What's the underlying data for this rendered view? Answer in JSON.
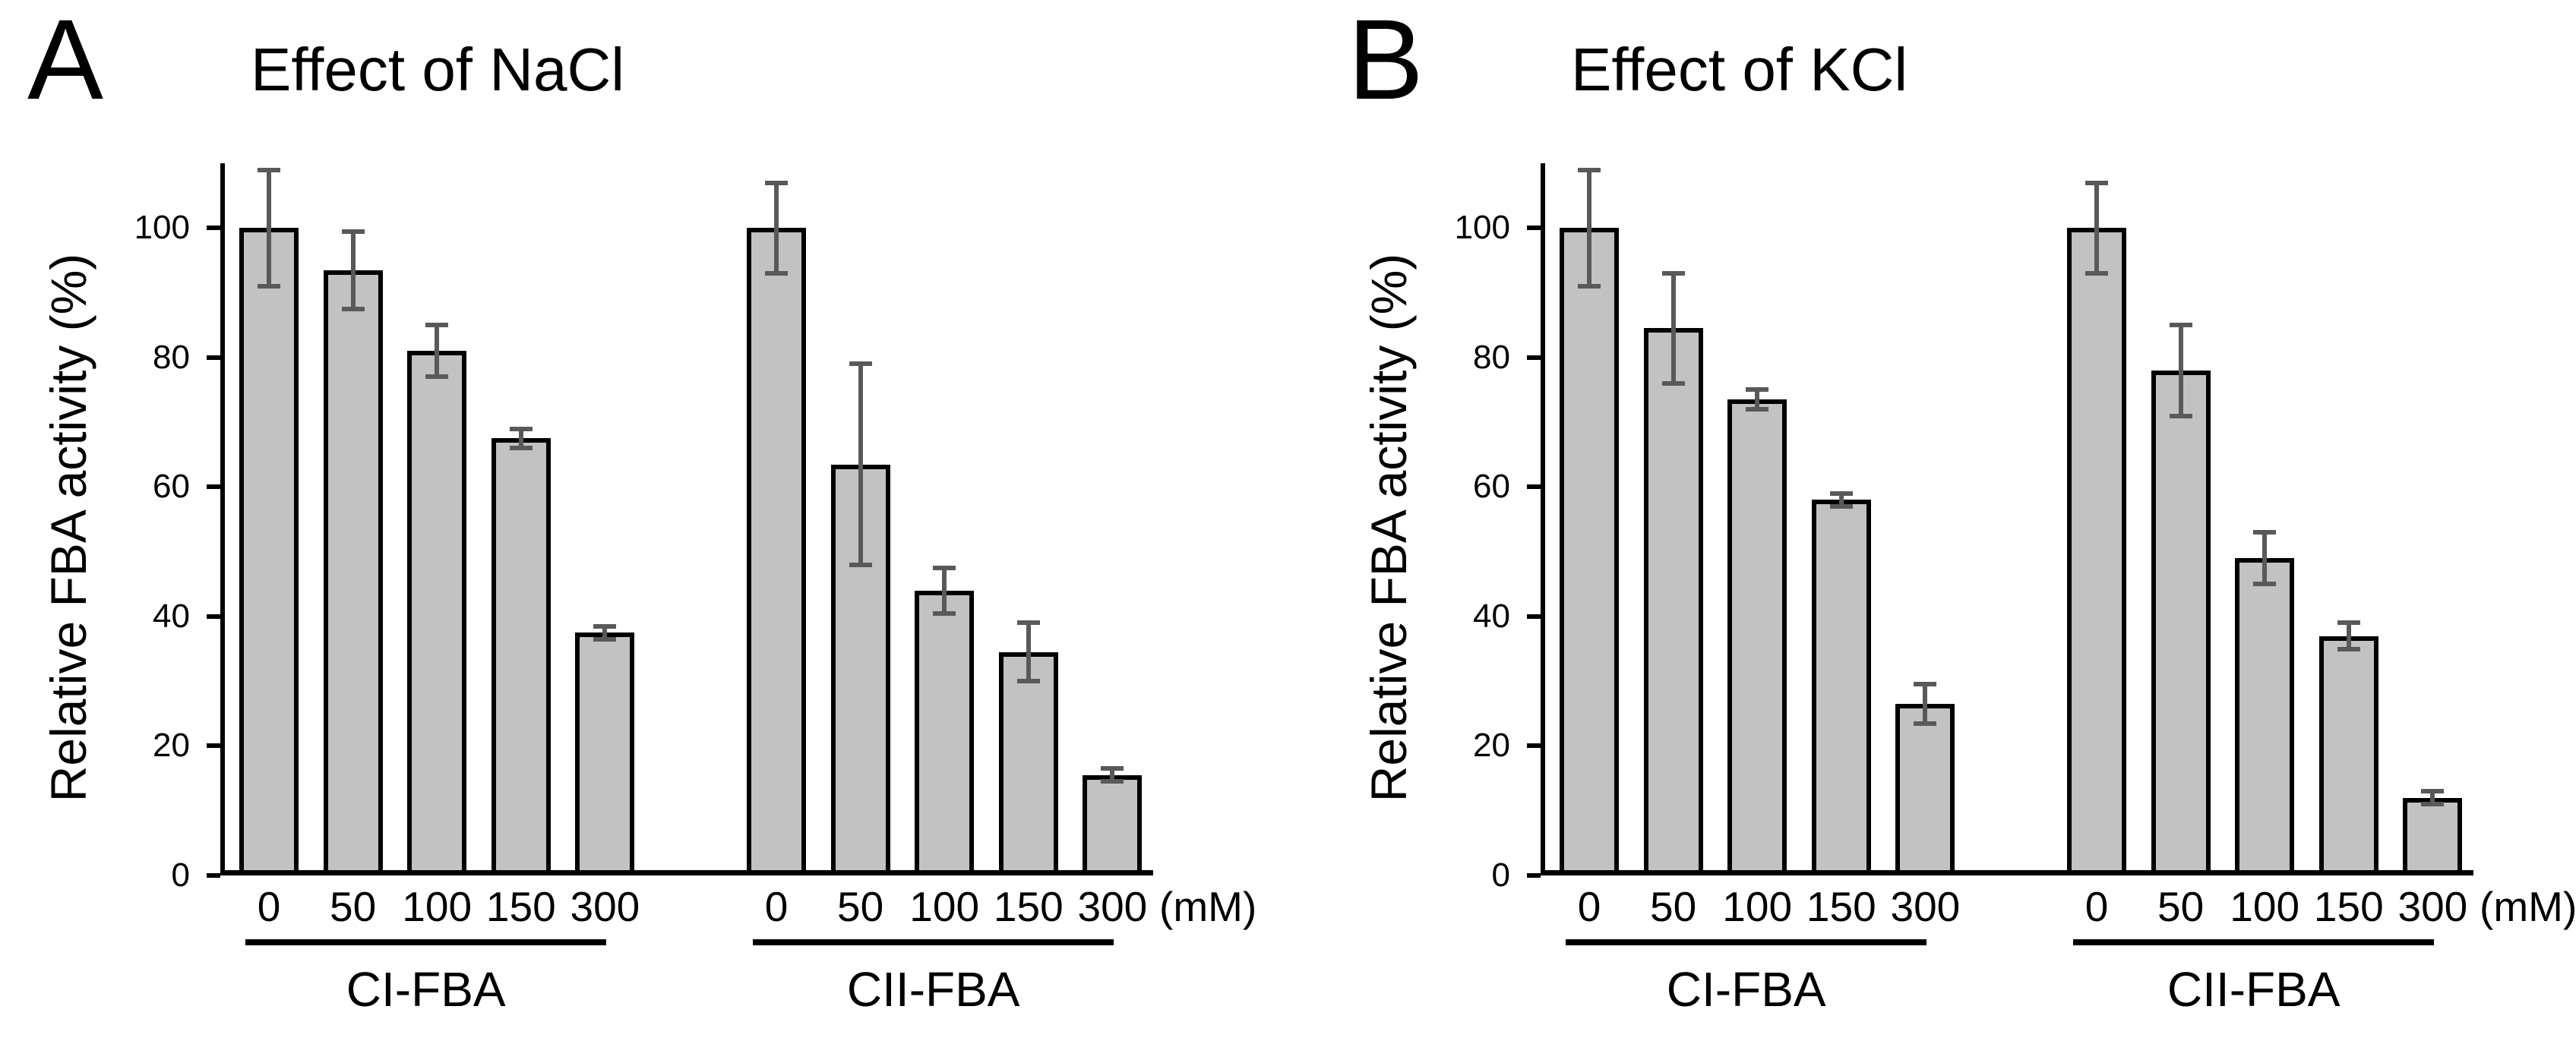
{
  "figure": {
    "background": "#ffffff",
    "text_color": "#000000"
  },
  "chart_data": [
    {
      "type": "bar",
      "panel_label": "A",
      "title": "Effect of NaCl",
      "ylabel": "Relative FBA activity (%)",
      "xlabel_unit": "(mM)",
      "ylim": [
        0,
        110
      ],
      "yticks": [
        0,
        20,
        40,
        60,
        80,
        100
      ],
      "grid": "off",
      "legend": "none",
      "categories": [
        "0",
        "50",
        "100",
        "150",
        "300"
      ],
      "series": [
        {
          "name": "CI-FBA",
          "values": [
            100,
            93.5,
            81,
            67.5,
            37.5
          ],
          "errors": [
            9,
            6,
            4,
            1.5,
            1
          ]
        },
        {
          "name": "CII-FBA",
          "values": [
            100,
            63.5,
            44,
            34.5,
            15.5
          ],
          "errors": [
            7,
            15.5,
            3.5,
            4.5,
            1
          ]
        }
      ],
      "bar_fill": "#c2c2c2",
      "bar_border": "#000000",
      "error_color": "#595959"
    },
    {
      "type": "bar",
      "panel_label": "B",
      "title": "Effect of KCl",
      "ylabel": "Relative FBA activity (%)",
      "xlabel_unit": "(mM)",
      "ylim": [
        0,
        110
      ],
      "yticks": [
        0,
        20,
        40,
        60,
        80,
        100
      ],
      "grid": "off",
      "legend": "none",
      "categories": [
        "0",
        "50",
        "100",
        "150",
        "300"
      ],
      "series": [
        {
          "name": "CI-FBA",
          "values": [
            100,
            84.5,
            73.5,
            58,
            26.5
          ],
          "errors": [
            9,
            8.5,
            1.5,
            1,
            3
          ]
        },
        {
          "name": "CII-FBA",
          "values": [
            100,
            78,
            49,
            37,
            12
          ],
          "errors": [
            7,
            7,
            4,
            2,
            1
          ]
        }
      ],
      "bar_fill": "#c2c2c2",
      "bar_border": "#000000",
      "error_color": "#595959"
    }
  ]
}
